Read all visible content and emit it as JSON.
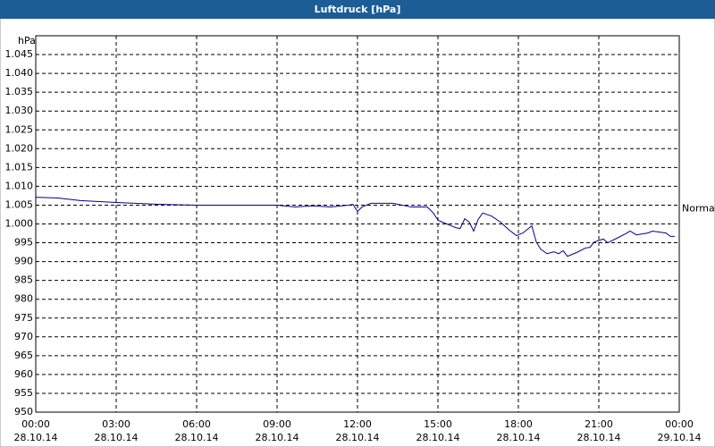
{
  "chart_data": {
    "type": "line",
    "title": "Luftdruck [hPa]",
    "y_unit": "hPa",
    "annotation": {
      "label": "Normal",
      "value": 1004
    },
    "xlim": [
      0,
      24
    ],
    "ylim": [
      950,
      1050
    ],
    "xticks": [
      {
        "value": 0,
        "label": "00:00",
        "date": "28.10.14"
      },
      {
        "value": 3,
        "label": "03:00",
        "date": "28.10.14"
      },
      {
        "value": 6,
        "label": "06:00",
        "date": "28.10.14"
      },
      {
        "value": 9,
        "label": "09:00",
        "date": "28.10.14"
      },
      {
        "value": 12,
        "label": "12:00",
        "date": "28.10.14"
      },
      {
        "value": 15,
        "label": "15:00",
        "date": "28.10.14"
      },
      {
        "value": 18,
        "label": "18:00",
        "date": "28.10.14"
      },
      {
        "value": 21,
        "label": "21:00",
        "date": "28.10.14"
      },
      {
        "value": 24,
        "label": "00:00",
        "date": "29.10.14"
      }
    ],
    "yticks": [
      950,
      955,
      960,
      965,
      970,
      975,
      980,
      985,
      990,
      995,
      {
        "value": 1000,
        "label": "1.000"
      },
      {
        "value": 1005,
        "label": "1.005"
      },
      {
        "value": 1010,
        "label": "1.010"
      },
      {
        "value": 1015,
        "label": "1.015"
      },
      {
        "value": 1020,
        "label": "1.020"
      },
      {
        "value": 1025,
        "label": "1.025"
      },
      {
        "value": 1030,
        "label": "1.030"
      },
      {
        "value": 1035,
        "label": "1.035"
      },
      {
        "value": 1040,
        "label": "1.040"
      },
      {
        "value": 1045,
        "label": "1.045"
      }
    ],
    "grid": true,
    "series": [
      {
        "color": "#00008b",
        "x": [
          0,
          0.83,
          1.67,
          3,
          4.67,
          6,
          9,
          9.67,
          10.33,
          11,
          11.67,
          11.83,
          12,
          12.17,
          12.5,
          13.33,
          14,
          14.6,
          14.83,
          15,
          15.33,
          15.67,
          15.83,
          16,
          16.17,
          16.33,
          16.5,
          16.67,
          17,
          17.33,
          17.67,
          17.93,
          18.17,
          18.5,
          18.67,
          18.83,
          19.07,
          19.33,
          19.5,
          19.67,
          19.83,
          20.17,
          20.5,
          20.67,
          20.83,
          21.17,
          21.33,
          21.67,
          22,
          22.17,
          22.4,
          22.83,
          23,
          23.5,
          23.67,
          23.83
        ],
        "values": [
          1007.1,
          1006.9,
          1006.2,
          1005.7,
          1005.2,
          1005,
          1005,
          1004.5,
          1004.8,
          1004.5,
          1005,
          1005.2,
          1003.3,
          1004.5,
          1005.5,
          1005.5,
          1004.5,
          1004.5,
          1002.9,
          1001,
          1000,
          999,
          998.8,
          1001.4,
          1000.5,
          998.1,
          1001.2,
          1002.9,
          1002.1,
          1000.5,
          998.3,
          996.9,
          997.6,
          999.5,
          995.2,
          993.3,
          992.1,
          992.6,
          992.1,
          992.9,
          991.4,
          992.4,
          993.6,
          993.8,
          995.2,
          996,
          995,
          996.2,
          997.4,
          998.1,
          997.1,
          997.6,
          998.1,
          997.6,
          996.7,
          996.7
        ]
      }
    ]
  }
}
